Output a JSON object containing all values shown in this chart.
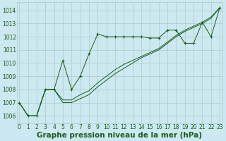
{
  "xlabel": "Graphe pression niveau de la mer (hPa)",
  "x_ticks": [
    0,
    1,
    2,
    3,
    4,
    5,
    6,
    7,
    8,
    9,
    10,
    11,
    12,
    13,
    14,
    15,
    16,
    17,
    18,
    19,
    20,
    21,
    22,
    23
  ],
  "y_ticks": [
    1006,
    1007,
    1008,
    1009,
    1010,
    1011,
    1012,
    1013,
    1014
  ],
  "ylim": [
    1005.4,
    1014.6
  ],
  "xlim": [
    -0.3,
    23.3
  ],
  "bg_color": "#cce8f0",
  "grid_color": "#aacccc",
  "line_color": "#1a5c1a",
  "series1_y": [
    1007.0,
    1006.0,
    1006.0,
    1008.0,
    1008.0,
    1010.2,
    1008.0,
    1009.0,
    1010.7,
    1012.2,
    1012.0,
    1012.0,
    1012.0,
    1012.0,
    1012.0,
    1011.9,
    1011.9,
    1012.5,
    1012.5,
    1011.5,
    1011.5,
    1013.1,
    1012.0,
    1014.2
  ],
  "series2_y": [
    1007.0,
    1006.0,
    1006.0,
    1008.0,
    1008.0,
    1007.0,
    1007.0,
    1007.3,
    1007.6,
    1008.2,
    1008.7,
    1009.2,
    1009.6,
    1010.0,
    1010.4,
    1010.7,
    1011.0,
    1011.5,
    1012.0,
    1012.4,
    1012.7,
    1013.0,
    1013.4,
    1014.2
  ],
  "series3_y": [
    1007.0,
    1006.0,
    1006.0,
    1008.0,
    1008.0,
    1007.2,
    1007.2,
    1007.6,
    1007.9,
    1008.5,
    1009.0,
    1009.5,
    1009.9,
    1010.2,
    1010.5,
    1010.8,
    1011.1,
    1011.6,
    1012.1,
    1012.5,
    1012.8,
    1013.1,
    1013.5,
    1014.2
  ],
  "tick_fontsize": 5.5,
  "xlabel_fontsize": 7.5
}
